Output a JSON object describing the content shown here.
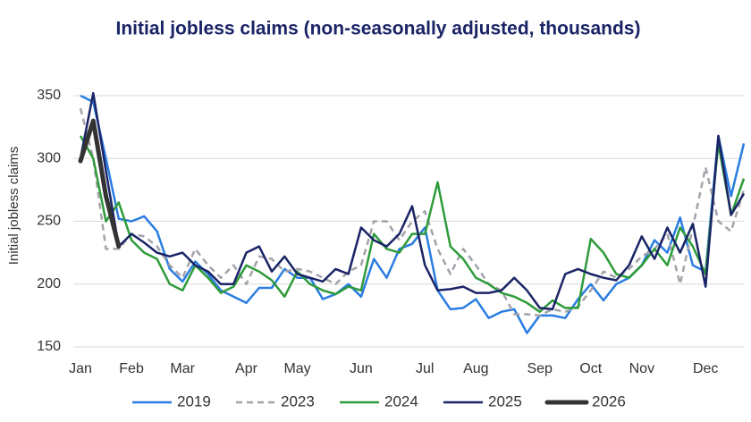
{
  "chart_data": {
    "type": "line",
    "title": "Initial jobless claims (non-seasonally adjusted, thousands)",
    "y_label": "Initial jobless claims",
    "categories": [
      "Jan",
      null,
      null,
      null,
      "Feb",
      null,
      null,
      null,
      "Mar",
      null,
      null,
      null,
      null,
      "Apr",
      null,
      null,
      null,
      "May",
      null,
      null,
      null,
      null,
      "Jun",
      null,
      null,
      null,
      null,
      "Jul",
      null,
      null,
      null,
      "Aug",
      null,
      null,
      null,
      null,
      "Sep",
      null,
      null,
      null,
      "Oct",
      null,
      null,
      null,
      "Nov",
      null,
      null,
      null,
      null,
      "Dec",
      null,
      null,
      null
    ],
    "ylim": [
      150,
      350
    ],
    "yticks": [
      150,
      200,
      250,
      300,
      350
    ],
    "grid": true,
    "legend": "bottom",
    "series": [
      {
        "name": "2019",
        "color": "#2a7de1",
        "values": [
          350,
          345,
          300,
          252,
          250,
          254,
          242,
          212,
          202,
          218,
          208,
          195,
          190,
          185,
          197,
          197,
          212,
          205,
          205,
          188,
          192,
          200,
          190,
          220,
          205,
          228,
          232,
          245,
          195,
          180,
          181,
          188,
          173,
          178,
          180,
          161,
          175,
          175,
          173,
          188,
          200,
          187,
          200,
          205,
          215,
          235,
          225,
          253,
          215,
          210,
          318,
          270,
          312
        ]
      },
      {
        "name": "2023",
        "color": "#a3a3ab",
        "dashed": true,
        "values": [
          340,
          300,
          228,
          228,
          240,
          238,
          230,
          215,
          205,
          228,
          215,
          205,
          215,
          200,
          222,
          220,
          210,
          212,
          210,
          205,
          200,
          210,
          215,
          250,
          250,
          235,
          250,
          258,
          228,
          208,
          228,
          215,
          200,
          195,
          176,
          176,
          175,
          180,
          178,
          182,
          195,
          210,
          205,
          212,
          222,
          228,
          240,
          200,
          245,
          293,
          250,
          242,
          275
        ]
      },
      {
        "name": "2024",
        "color": "#2e9b3a",
        "values": [
          318,
          300,
          250,
          265,
          235,
          225,
          220,
          200,
          195,
          215,
          205,
          193,
          198,
          215,
          210,
          203,
          190,
          210,
          200,
          195,
          192,
          198,
          195,
          240,
          228,
          225,
          240,
          240,
          281,
          230,
          220,
          205,
          200,
          193,
          190,
          185,
          178,
          187,
          181,
          181,
          236,
          225,
          208,
          205,
          215,
          228,
          215,
          245,
          230,
          208,
          312,
          255,
          284
        ]
      },
      {
        "name": "2025",
        "color": "#1a2466",
        "values": [
          300,
          352,
          290,
          230,
          240,
          233,
          225,
          222,
          225,
          215,
          210,
          200,
          200,
          225,
          230,
          210,
          222,
          208,
          205,
          202,
          212,
          208,
          245,
          235,
          230,
          240,
          262,
          215,
          195,
          196,
          198,
          193,
          193,
          195,
          205,
          195,
          181,
          180,
          208,
          212,
          208,
          205,
          203,
          215,
          238,
          220,
          245,
          225,
          248,
          198,
          318,
          255,
          272
        ]
      },
      {
        "name": "2026",
        "color": "#333333",
        "bold": true,
        "values": [
          298,
          330,
          270,
          230,
          null,
          null,
          null,
          null,
          null,
          null,
          null,
          null,
          null,
          null,
          null,
          null,
          null,
          null,
          null,
          null,
          null,
          null,
          null,
          null,
          null,
          null,
          null,
          null,
          null,
          null,
          null,
          null,
          null,
          null,
          null,
          null,
          null,
          null,
          null,
          null,
          null,
          null,
          null,
          null,
          null,
          null,
          null,
          null,
          null,
          null,
          null,
          null,
          null
        ]
      }
    ]
  }
}
